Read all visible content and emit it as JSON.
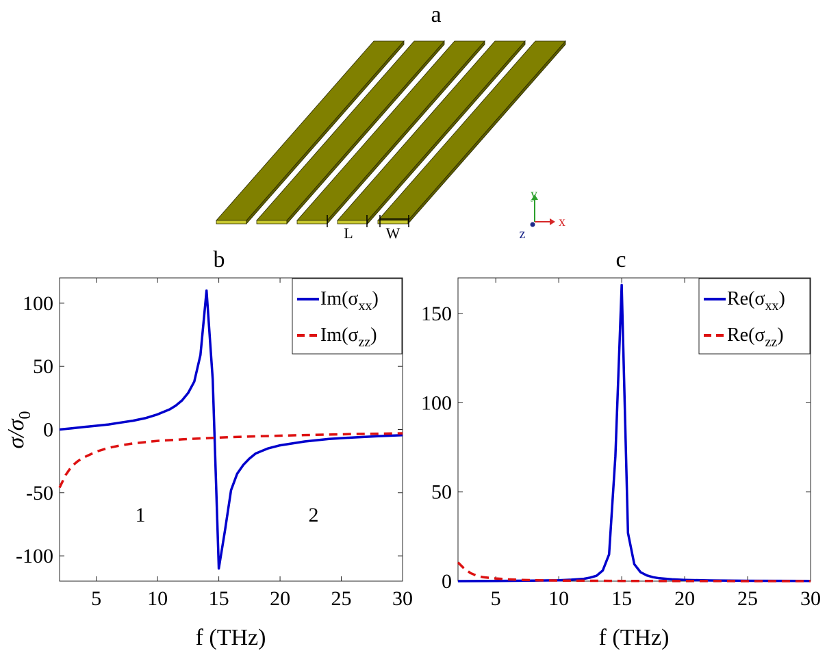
{
  "panel_a": {
    "label": "a",
    "dim_L": "L",
    "dim_W": "W",
    "axis_y": "y",
    "axis_x": "x",
    "axis_z": "z",
    "strip_count": 5,
    "colors": {
      "strip_top": "#808000",
      "strip_face": "#c8c830",
      "strip_edge": "#2a2a00"
    }
  },
  "chart_data": [
    {
      "id": "b",
      "type": "line",
      "title": "b",
      "xlabel": "f (THz)",
      "ylabel": "σ/σ0",
      "ylabel_main": "σ/σ",
      "ylabel_sub": "0",
      "xlim": [
        2,
        30
      ],
      "ylim": [
        -120,
        120
      ],
      "xticks": [
        5,
        10,
        15,
        20,
        25,
        30
      ],
      "yticks": [
        100,
        50,
        0,
        -50,
        -100
      ],
      "grid": false,
      "legend_position": "top-right",
      "region_labels": [
        "1",
        "2"
      ],
      "series": [
        {
          "name": "Im(σxx)",
          "name_main": "Im(σ",
          "name_sub": "xx",
          "color": "#0000cc",
          "style": "solid",
          "x": [
            2,
            3,
            4,
            5,
            6,
            7,
            8,
            9,
            10,
            11,
            11.5,
            12,
            12.5,
            13,
            13.5,
            14,
            14.5,
            15,
            15.5,
            16,
            16.5,
            17,
            17.5,
            18,
            19,
            20,
            22,
            24,
            26,
            28,
            30
          ],
          "y": [
            0,
            1,
            2,
            3,
            4,
            5.5,
            7,
            9,
            12,
            16,
            19,
            23,
            29,
            38,
            59,
            110,
            40,
            -110,
            -80,
            -48,
            -35,
            -28,
            -23,
            -19,
            -15,
            -12.5,
            -9.5,
            -7.5,
            -6.3,
            -5.3,
            -4.5
          ]
        },
        {
          "name": "Im(σzz)",
          "name_main": "Im(σ",
          "name_sub": "zz",
          "color": "#dd1111",
          "style": "dashed",
          "x": [
            2,
            2.5,
            3,
            3.5,
            4,
            5,
            6,
            7,
            8,
            10,
            12,
            14,
            16,
            18,
            20,
            22,
            24,
            26,
            28,
            30
          ],
          "y": [
            -46,
            -36,
            -29,
            -25,
            -22,
            -17.5,
            -14.5,
            -12.5,
            -11,
            -9,
            -7.8,
            -6.8,
            -6,
            -5.4,
            -4.9,
            -4.4,
            -4,
            -3.6,
            -3.3,
            -3
          ]
        }
      ]
    },
    {
      "id": "c",
      "type": "line",
      "title": "c",
      "xlabel": "f (THz)",
      "ylabel": "",
      "xlim": [
        2,
        30
      ],
      "ylim": [
        0,
        170
      ],
      "xticks": [
        5,
        10,
        15,
        20,
        25,
        30
      ],
      "yticks": [
        0,
        50,
        100,
        150
      ],
      "grid": false,
      "legend_position": "top-right",
      "series": [
        {
          "name": "Re(σxx)",
          "name_main": "Re(σ",
          "name_sub": "xx",
          "color": "#0000cc",
          "style": "solid",
          "x": [
            2,
            5,
            8,
            10,
            11,
            12,
            12.5,
            13,
            13.5,
            14,
            14.5,
            15,
            15.5,
            16,
            16.5,
            17,
            17.5,
            18,
            19,
            20,
            22,
            25,
            30
          ],
          "y": [
            0,
            0.1,
            0.3,
            0.5,
            0.8,
            1.3,
            2,
            3,
            6,
            15,
            70,
            166,
            27,
            9.5,
            5,
            3.2,
            2.2,
            1.6,
            1,
            0.7,
            0.4,
            0.2,
            0.1
          ]
        },
        {
          "name": "Re(σzz)",
          "name_main": "Re(σ",
          "name_sub": "zz",
          "color": "#dd1111",
          "style": "dashed",
          "x": [
            2,
            2.5,
            3,
            3.5,
            4,
            5,
            6,
            7,
            8,
            10,
            15,
            20,
            30
          ],
          "y": [
            10.5,
            7,
            4.5,
            3,
            2.2,
            1.5,
            1,
            0.7,
            0.5,
            0.3,
            0.1,
            0.05,
            0
          ]
        }
      ]
    }
  ]
}
